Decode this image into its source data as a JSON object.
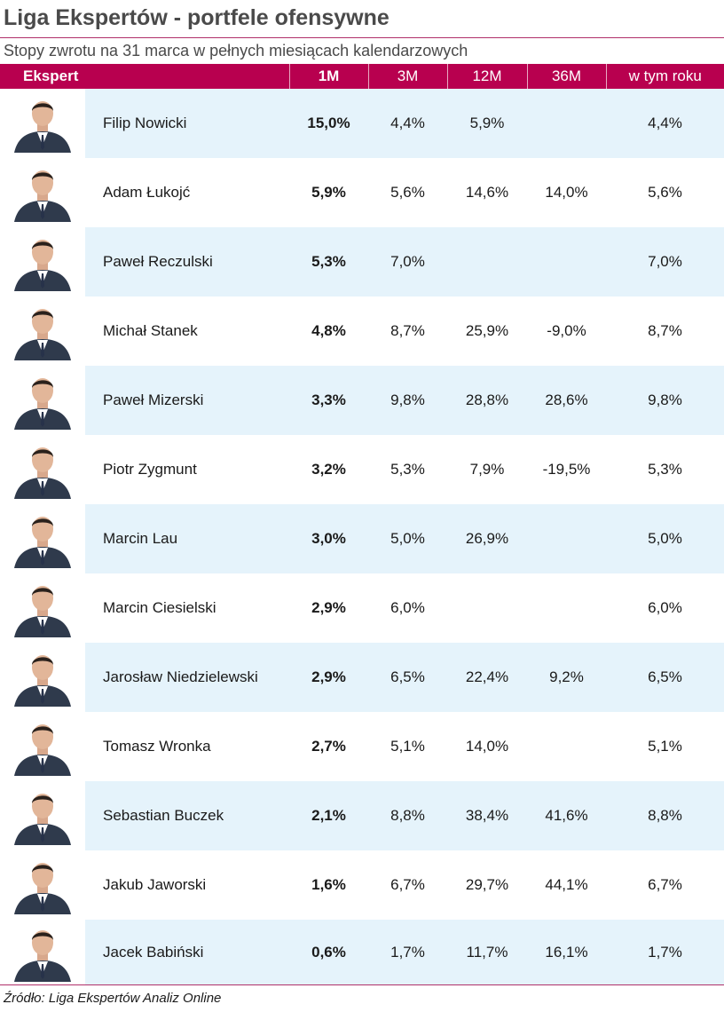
{
  "title": "Liga Ekspertów - portfele ofensywne",
  "subtitle": "Stopy zwrotu na 31 marca w pełnych miesiącach kalendarzowych",
  "columns": [
    "Ekspert",
    "1M",
    "3M",
    "12M",
    "36M",
    "w tym roku"
  ],
  "colors": {
    "header_bg": "#b8004f",
    "row_shade": "#e5f3fb",
    "rule": "#b0306a"
  },
  "rows": [
    {
      "name": "Filip Nowicki",
      "m1": "15,0%",
      "m3": "4,4%",
      "m12": "5,9%",
      "m36": "",
      "ytd": "4,4%"
    },
    {
      "name": "Adam Łukojć",
      "m1": "5,9%",
      "m3": "5,6%",
      "m12": "14,6%",
      "m36": "14,0%",
      "ytd": "5,6%"
    },
    {
      "name": "Paweł Reczulski",
      "m1": "5,3%",
      "m3": "7,0%",
      "m12": "",
      "m36": "",
      "ytd": "7,0%"
    },
    {
      "name": "Michał Stanek",
      "m1": "4,8%",
      "m3": "8,7%",
      "m12": "25,9%",
      "m36": "-9,0%",
      "ytd": "8,7%"
    },
    {
      "name": "Paweł Mizerski",
      "m1": "3,3%",
      "m3": "9,8%",
      "m12": "28,8%",
      "m36": "28,6%",
      "ytd": "9,8%"
    },
    {
      "name": "Piotr Zygmunt",
      "m1": "3,2%",
      "m3": "5,3%",
      "m12": "7,9%",
      "m36": "-19,5%",
      "ytd": "5,3%"
    },
    {
      "name": "Marcin Lau",
      "m1": "3,0%",
      "m3": "5,0%",
      "m12": "26,9%",
      "m36": "",
      "ytd": "5,0%"
    },
    {
      "name": "Marcin Ciesielski",
      "m1": "2,9%",
      "m3": "6,0%",
      "m12": "",
      "m36": "",
      "ytd": "6,0%"
    },
    {
      "name": "Jarosław Niedzielewski",
      "m1": "2,9%",
      "m3": "6,5%",
      "m12": "22,4%",
      "m36": "9,2%",
      "ytd": "6,5%"
    },
    {
      "name": "Tomasz Wronka",
      "m1": "2,7%",
      "m3": "5,1%",
      "m12": "14,0%",
      "m36": "",
      "ytd": "5,1%"
    },
    {
      "name": "Sebastian Buczek",
      "m1": "2,1%",
      "m3": "8,8%",
      "m12": "38,4%",
      "m36": "41,6%",
      "ytd": "8,8%"
    },
    {
      "name": "Jakub Jaworski",
      "m1": "1,6%",
      "m3": "6,7%",
      "m12": "29,7%",
      "m36": "44,1%",
      "ytd": "6,7%"
    },
    {
      "name": "Jacek Babiński",
      "m1": "0,6%",
      "m3": "1,7%",
      "m12": "11,7%",
      "m36": "16,1%",
      "ytd": "1,7%"
    }
  ],
  "source": "Źródło: Liga Ekspertów Analiz Online"
}
